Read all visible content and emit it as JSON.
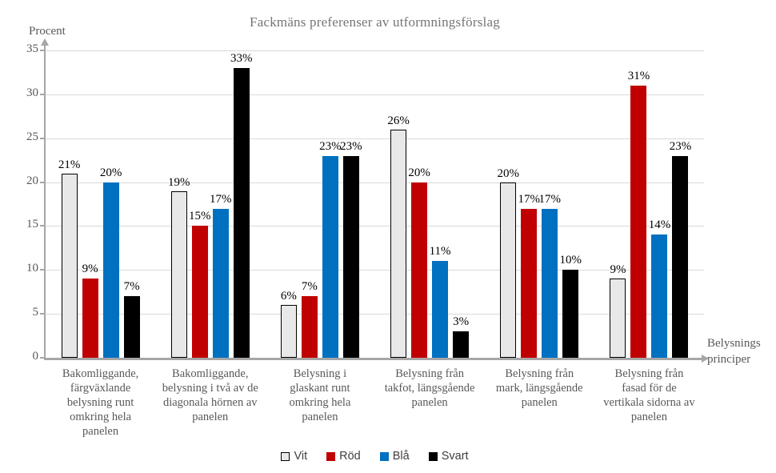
{
  "chart_data": {
    "type": "bar",
    "title": "Fackmäns preferenser av utformningsförslag",
    "ylabel": "Procent",
    "xlabel": "Belysnings\nprinciper",
    "ylim": [
      0,
      35
    ],
    "yticks": [
      0,
      5,
      10,
      15,
      20,
      25,
      30,
      35
    ],
    "grid": true,
    "legend_position": "bottom",
    "value_suffix": "%",
    "categories": [
      "Bakomliggande,\nfärgväxlande\nbelysning runt\nomkring hela\npanelen",
      "Bakomliggande,\nbelysning i två av de\ndiagonala hörnen av\npanelen",
      "Belysning i\nglaskant runt\nomkring hela\npanelen",
      "Belysning från\ntakfot, längsgående\npanelen",
      "Belysning från\nmark, längsgående\npanelen",
      "Belysning från\nfasad för de\nvertikala sidorna av\npanelen"
    ],
    "series": [
      {
        "name": "Vit",
        "color": "#e8e8e8",
        "border": "#000000",
        "values": [
          21,
          19,
          6,
          26,
          20,
          9
        ]
      },
      {
        "name": "Röd",
        "color": "#c00000",
        "border": null,
        "values": [
          9,
          15,
          7,
          20,
          17,
          31
        ]
      },
      {
        "name": "Blå",
        "color": "#0070c0",
        "border": null,
        "values": [
          20,
          17,
          23,
          11,
          17,
          14
        ]
      },
      {
        "name": "Svart",
        "color": "#000000",
        "border": null,
        "values": [
          7,
          33,
          23,
          3,
          10,
          23
        ]
      }
    ]
  },
  "colors": {
    "gridline": "#d9d9d9",
    "axis": "#a6a6a6",
    "title_text": "#757575",
    "axis_text": "#595959",
    "value_label_text": "#000000",
    "background": "#ffffff"
  }
}
